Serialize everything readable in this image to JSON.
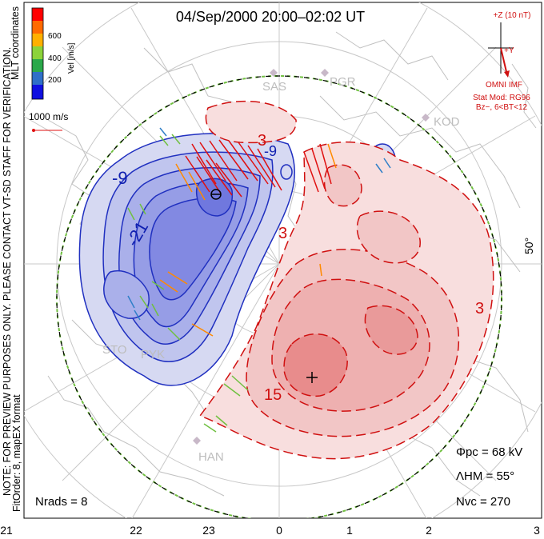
{
  "title": "04/Sep/2000 20:00–02:02 UT",
  "side_note": "NOTE: FOR PREVIEW PURPOSES ONLY. PLEASE CONTACT VT-SD STAFF FOR VERIFICATION.",
  "coord_label": "MLT coordinates",
  "fit_label": "FitOrder: 8, mapEX format",
  "colorbar": {
    "label": "Vel [m/s]",
    "ticks": [
      "600",
      "400",
      "200"
    ],
    "colors": [
      "#ff0000",
      "#ff6a00",
      "#ffb000",
      "#8cd33a",
      "#2aa84a",
      "#2f6fc8",
      "#1010e0"
    ]
  },
  "scale_vector_label": "1000 m/s",
  "imf": {
    "bz_label": "+Z (10 nT)",
    "by_label": "+Y",
    "source": "OMNI IMF",
    "model": "Stat Mod: RG96",
    "condition": "Bz−, 6<BT<12"
  },
  "latitude_label": "50°",
  "stations": [
    "SAS",
    "PGR",
    "KOD",
    "STO",
    "PYK",
    "HAN"
  ],
  "contour_labels": [
    "-9",
    "-21",
    "-9",
    "3",
    "3",
    "3",
    "15"
  ],
  "stats": {
    "phi_pc": "Φpc = 68 kV",
    "lambda_hm": "ΛHM = 55°",
    "n_vc": "Nvc = 270",
    "n_rads": "Nrads = 8"
  },
  "mlt_ticks": [
    "21",
    "22",
    "23",
    "0",
    "1",
    "2",
    "3"
  ]
}
